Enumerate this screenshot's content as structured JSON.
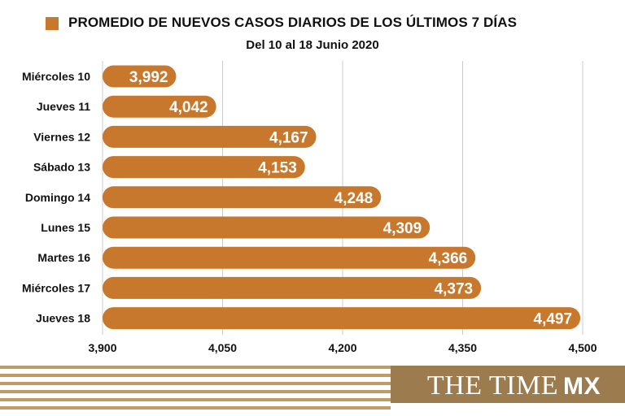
{
  "header": {
    "title": "PROMEDIO DE NUEVOS CASOS DIARIOS DE LOS ÚLTIMOS 7 DÍAS",
    "subtitle": "Del 10 al 18 Junio 2020"
  },
  "brand": {
    "name": "THE TIME",
    "suffix": "MX"
  },
  "colors": {
    "bar": "#c8782d",
    "bar_dark": "#b86a22",
    "grid": "#cccccc",
    "footer_stripe": "#c19b66",
    "footer_box": "#9c7c4f"
  },
  "chart_data": {
    "type": "bar",
    "orientation": "horizontal",
    "categories": [
      "Miércoles 10",
      "Jueves 11",
      "Viernes 12",
      "Sábado 13",
      "Domingo 14",
      "Lunes 15",
      "Martes 16",
      "Miércoles 17",
      "Jueves 18"
    ],
    "values": [
      3992,
      4042,
      4167,
      4153,
      4248,
      4309,
      4366,
      4373,
      4497
    ],
    "value_labels": [
      "3,992",
      "4,042",
      "4,167",
      "4,153",
      "4,248",
      "4,309",
      "4,366",
      "4,373",
      "4,497"
    ],
    "title": "PROMEDIO DE NUEVOS CASOS DIARIOS DE LOS ÚLTIMOS 7 DÍAS",
    "subtitle": "Del 10 al 18 Junio 2020",
    "xlim": [
      3900,
      4500
    ],
    "xticks": [
      3900,
      4050,
      4200,
      4350,
      4500
    ],
    "xtick_labels": [
      "3,900",
      "4,050",
      "4,200",
      "4,350",
      "4,500"
    ],
    "grid": true
  }
}
